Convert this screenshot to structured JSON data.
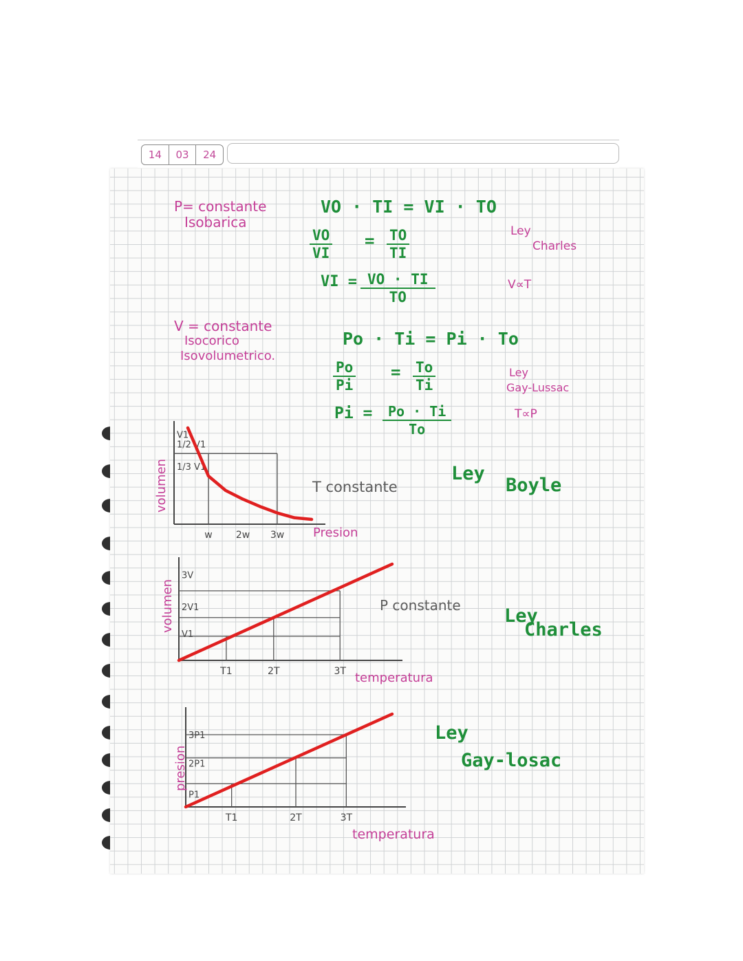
{
  "date": [
    "14",
    "03",
    "24"
  ],
  "colors": {
    "pink": "#c43e97",
    "green": "#1f8f3a",
    "red": "#e02020",
    "gray": "#5b5b5b"
  },
  "notes": {
    "isobaric": {
      "line1": "P= constante",
      "line2": "Isobarica"
    },
    "isochoric": {
      "line1": "V = constante",
      "line2": "Isocorico",
      "line3": "Isovolumetrico."
    }
  },
  "charles": {
    "eq1": "VO · TI = VI · TO",
    "eq2_num": "VO",
    "eq2_den": "VI",
    "eq2_eq": "=",
    "eq2_rnum": "TO",
    "eq2_rden": "TI",
    "eq3_left": "VI =",
    "eq3_num": "VO · TI",
    "eq3_den": "TO",
    "label_ley": "Ley",
    "label_name": "Charles",
    "proportional": "V∝T"
  },
  "gaylussac": {
    "eq1": "Po · Ti = Pi · To",
    "eq2_num": "Po",
    "eq2_den": "Pi",
    "eq2_eq": "=",
    "eq2_rnum": "To",
    "eq2_rden": "Ti",
    "eq3_left": "Pi =",
    "eq3_num": "Po · Ti",
    "eq3_den": "To",
    "label_ley": "Ley",
    "label_name": "Gay-Lussac",
    "proportional": "T∝P"
  },
  "chart_data": [
    {
      "type": "line",
      "law": "Boyle",
      "xlabel": "Presion",
      "ylabel": "volumen",
      "x_ticks": [
        "w",
        "2w",
        "3w"
      ],
      "y_ticks": [
        "V1",
        "1/2 V1",
        "1/3 V1"
      ],
      "annotation": "T constante",
      "label_ley": "Ley",
      "label_name": "Boyle",
      "series": [
        {
          "x": [
            0.4,
            1,
            1.5,
            2,
            2.5,
            3,
            3.5,
            4
          ],
          "y": [
            3,
            1.5,
            1.05,
            0.78,
            0.55,
            0.35,
            0.2,
            0.15
          ]
        }
      ]
    },
    {
      "type": "line",
      "law": "Charles",
      "xlabel": "temperatura",
      "ylabel": "volumen",
      "x_ticks": [
        "T1",
        "2T",
        "3T"
      ],
      "y_ticks": [
        "V1",
        "2V1",
        "3V"
      ],
      "annotation": "P constante",
      "label_ley": "Ley",
      "label_name": "Charles",
      "series": [
        {
          "x": [
            0,
            4.5
          ],
          "y": [
            0,
            3.6
          ]
        }
      ]
    },
    {
      "type": "line",
      "law": "Gay-Lussac",
      "xlabel": "temperatura",
      "ylabel": "presion",
      "x_ticks": [
        "T1",
        "2T",
        "3T"
      ],
      "y_ticks": [
        "P1",
        "2P1",
        "3P1"
      ],
      "label_ley": "Ley",
      "label_name": "Gay-losac",
      "series": [
        {
          "x": [
            0,
            4.5
          ],
          "y": [
            0,
            3.6
          ]
        }
      ]
    }
  ]
}
